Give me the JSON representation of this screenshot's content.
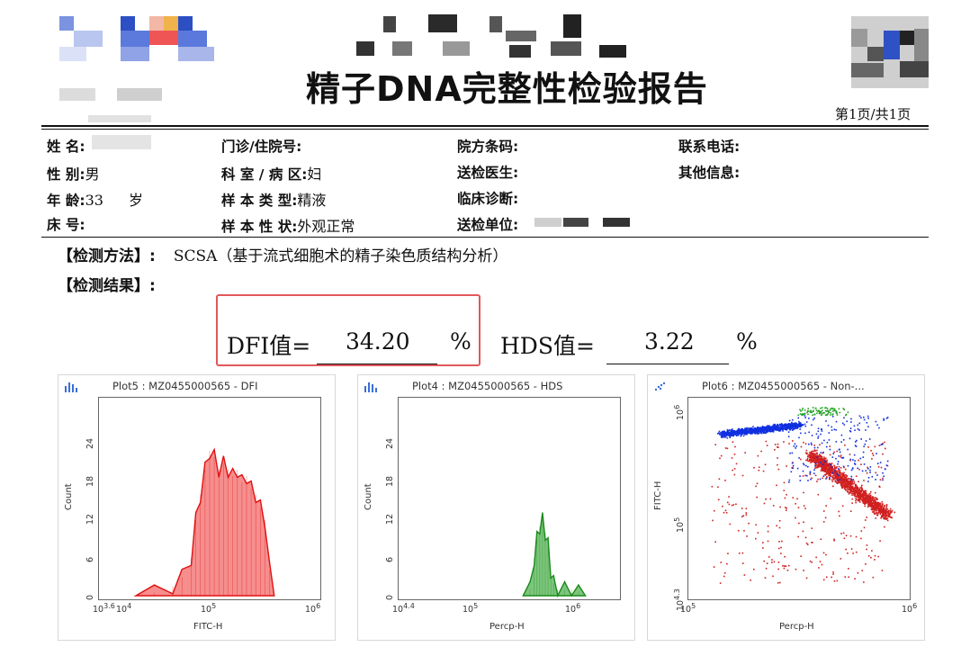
{
  "header": {
    "title": "精子DNA完整性检验报告",
    "page_number": "第1页/共1页"
  },
  "patient_info": {
    "name_label": "姓 名:",
    "sex_label": "性 别:",
    "sex_value": "男",
    "age_label": "年 龄:",
    "age_value": "33",
    "age_unit": "岁",
    "bed_label": "床 号:",
    "clinic_label": "门诊/住院号:",
    "dept_label": "科 室 / 病 区:",
    "dept_value": "妇",
    "sample_type_label": "样 本 类 型:",
    "sample_type_value": "精液",
    "sample_trait_label": "样 本 性 状:",
    "sample_trait_value": "外观正常",
    "barcode_label": "院方条码:",
    "doctor_label": "送检医生:",
    "diagnosis_label": "临床诊断:",
    "unit_label": "送检单位:",
    "phone_label": "联系电话:",
    "other_label": "其他信息:"
  },
  "method": {
    "label": "【检测方法】:",
    "value": "SCSA（基于流式细胞术的精子染色质结构分析）"
  },
  "result": {
    "label": "【检测结果】:",
    "dfi_label": "DFI值=",
    "dfi_value": "34.20",
    "dfi_unit": "%",
    "hds_label": "HDS值=",
    "hds_value": "3.22",
    "hds_unit": "%"
  },
  "colors": {
    "highlight_box": "#e2575b",
    "dfi_fill": "#f47a7a",
    "dfi_line": "#e01010",
    "hds_fill": "#66bb66",
    "hds_line": "#1a8a1a",
    "dot_blue": "#1030e0",
    "dot_red": "#d02020",
    "dot_green": "#20a020"
  },
  "chart_data": [
    {
      "type": "area",
      "title": "Plot5 : MZ0455000565 - DFI",
      "xlabel": "FITC-H",
      "ylabel": "Count",
      "x_scale": "log",
      "x_ticks": [
        "10^3.6",
        "10^4",
        "10^5",
        "10^6"
      ],
      "y_ticks": [
        "0",
        "6",
        "12",
        "18",
        "24"
      ],
      "ylim": [
        0,
        30
      ],
      "x": [
        4.0,
        4.2,
        4.4,
        4.5,
        4.6,
        4.65,
        4.7,
        4.75,
        4.8,
        4.85,
        4.9,
        4.95,
        5.0,
        5.05,
        5.1,
        5.15,
        5.2,
        5.25,
        5.3,
        5.35,
        5.4,
        5.45,
        5.5
      ],
      "values": [
        0,
        0.5,
        1.5,
        3,
        6,
        12,
        16,
        20,
        23,
        22,
        20,
        21,
        20,
        19,
        20,
        18,
        19,
        17,
        16,
        14,
        12,
        4,
        0
      ]
    },
    {
      "type": "area",
      "title": "Plot4 : MZ0455000565 - HDS",
      "xlabel": "Percp-H",
      "ylabel": "Count",
      "x_scale": "log",
      "x_ticks": [
        "10^4.4",
        "10^5",
        "10^6"
      ],
      "y_ticks": [
        "0",
        "6",
        "12",
        "18",
        "24"
      ],
      "ylim": [
        0,
        30
      ],
      "x": [
        5.3,
        5.35,
        5.38,
        5.4,
        5.42,
        5.44,
        5.46,
        5.48,
        5.5,
        5.52,
        5.55,
        5.6,
        5.65,
        5.7,
        5.75
      ],
      "values": [
        0,
        1,
        6,
        9,
        11,
        12,
        10,
        8,
        4,
        2,
        1,
        1,
        1,
        0.5,
        0
      ]
    },
    {
      "type": "scatter",
      "title": "Plot6 : MZ0455000565 - Non-...",
      "xlabel": "Percp-H",
      "ylabel": "FITC-H",
      "x_scale": "log",
      "y_scale": "log",
      "x_ticks": [
        "10^5",
        "10^6"
      ],
      "y_ticks": [
        "10^4.3",
        "10^5",
        "10^6"
      ],
      "series": [
        {
          "color": "blue",
          "description_points": [
            [
              5.2,
              5.75
            ],
            [
              5.3,
              5.8
            ],
            [
              5.4,
              5.85
            ]
          ]
        },
        {
          "color": "red",
          "description_points": [
            [
              5.6,
              5.5
            ],
            [
              5.75,
              5.25
            ],
            [
              5.85,
              5.05
            ]
          ]
        },
        {
          "color": "green",
          "description_points": [
            [
              5.55,
              5.95
            ],
            [
              5.6,
              5.98
            ]
          ]
        }
      ]
    }
  ]
}
